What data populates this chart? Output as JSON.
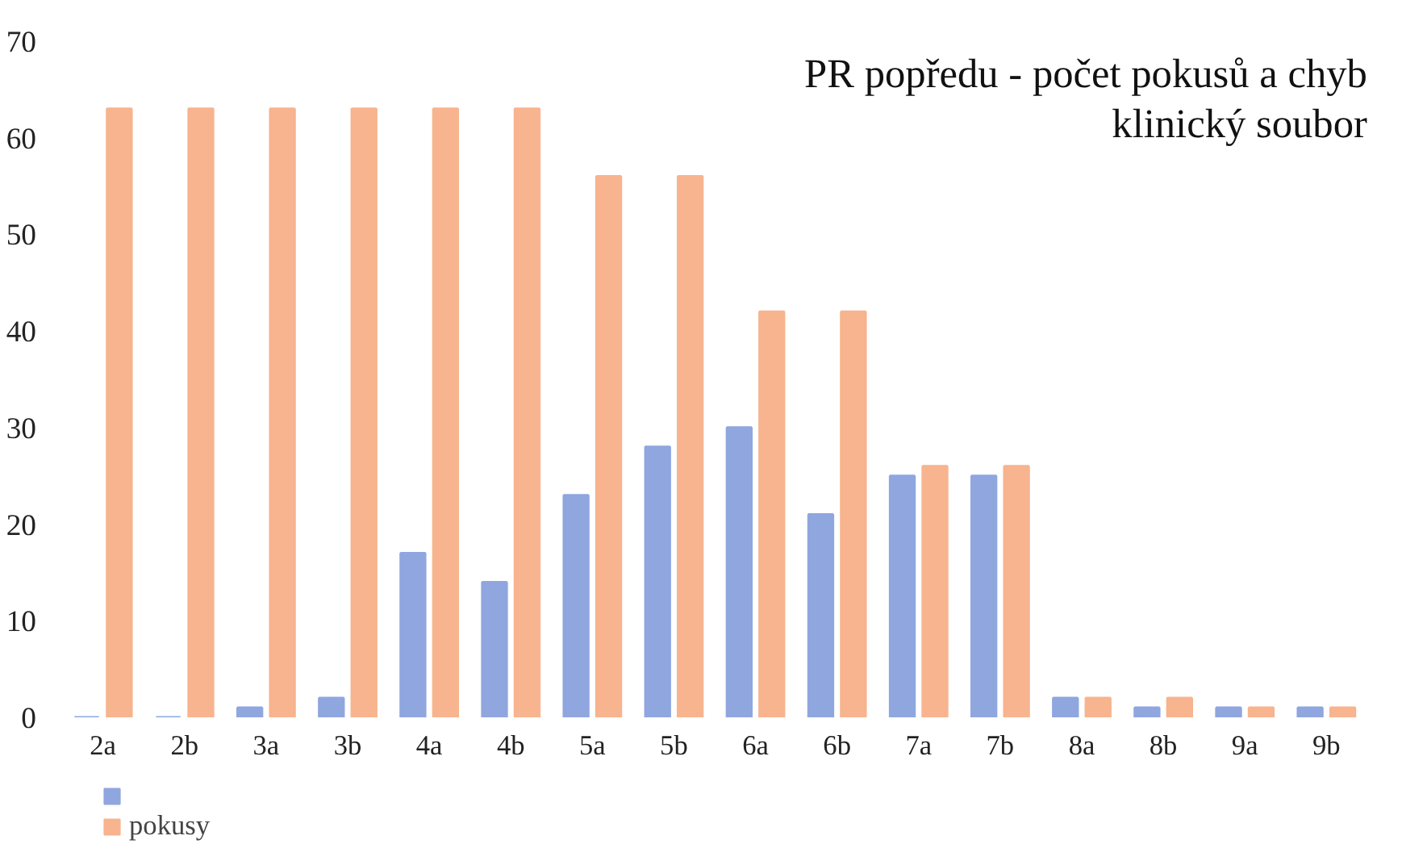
{
  "chart_data": {
    "type": "bar",
    "title": "PR popředu - počet pokusů a chyb",
    "subtitle": "klinický soubor",
    "categories": [
      "2a",
      "2b",
      "3a",
      "3b",
      "4a",
      "4b",
      "5a",
      "5b",
      "6a",
      "6b",
      "7a",
      "7b",
      "8a",
      "8b",
      "9a",
      "9b"
    ],
    "series": [
      {
        "color": "#8fa6df",
        "values": [
          0,
          0,
          1,
          2,
          17,
          14,
          23,
          28,
          30,
          21,
          25,
          25,
          2,
          1,
          1,
          1
        ]
      },
      {
        "name": "pokusy",
        "color": "#f7b48e",
        "values": [
          63,
          63,
          63,
          63,
          63,
          63,
          56,
          56,
          42,
          42,
          26,
          26,
          2,
          2,
          1,
          1
        ]
      }
    ],
    "ylim": [
      0,
      70
    ],
    "yticks": [
      0,
      10,
      20,
      30,
      40,
      50,
      60,
      70
    ],
    "grid": false,
    "legend": "bottom"
  }
}
